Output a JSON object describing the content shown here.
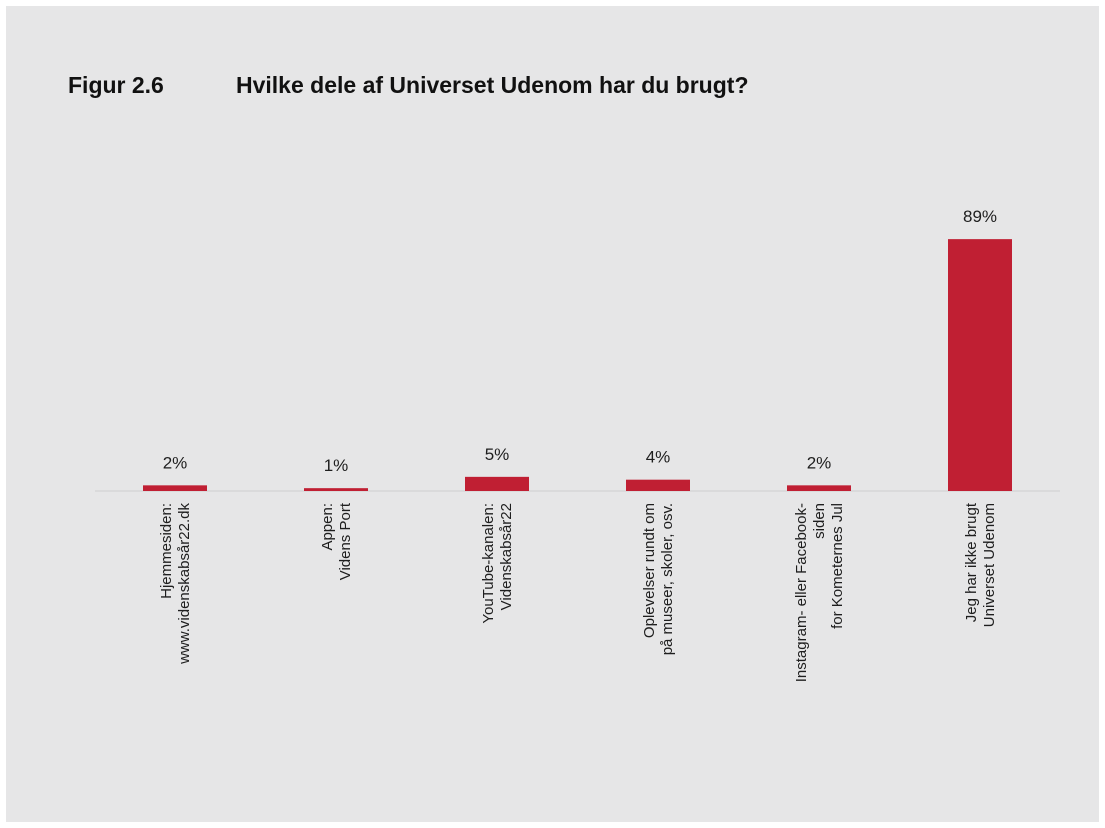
{
  "figure": {
    "number": "Figur 2.6",
    "title": "Hvilke dele af Universet Udenom har du brugt?"
  },
  "colors": {
    "bar": "#c01f33",
    "background": "#e6e6e7",
    "baseline": "#cfcfcf"
  },
  "chart_data": {
    "type": "bar",
    "title": "Hvilke dele af Universet Udenom har du brugt?",
    "categories": [
      [
        "Hjemmesiden:",
        "www.videnskabsår22.dk"
      ],
      [
        "Appen:",
        "Videns Port"
      ],
      [
        "YouTube-kanalen:",
        "Videnskabsår22"
      ],
      [
        "Oplevelser rundt om",
        "på museer, skoler, osv."
      ],
      [
        "Instagram- eller Facebook-",
        "siden",
        "for Kometernes Jul"
      ],
      [
        "Jeg har ikke brugt",
        "Universet Udenom"
      ]
    ],
    "values": [
      2,
      1,
      5,
      4,
      2,
      89
    ],
    "value_labels": [
      "2%",
      "1%",
      "5%",
      "4%",
      "2%",
      "89%"
    ],
    "unit": "%",
    "ylim": [
      0,
      100
    ],
    "grid": false,
    "legend": "none",
    "xlabel": "",
    "ylabel": ""
  }
}
